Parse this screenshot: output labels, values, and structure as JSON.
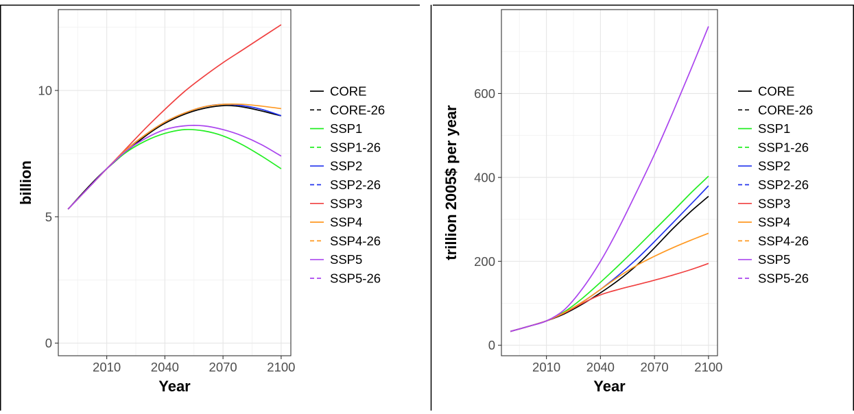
{
  "chart_data": [
    {
      "type": "line",
      "title": "",
      "xlabel": "Year",
      "ylabel": "billion",
      "xlim": [
        1985,
        2105
      ],
      "ylim": [
        -0.5,
        13.2
      ],
      "xticks": [
        2010,
        2040,
        2070,
        2100
      ],
      "yticks": [
        0,
        5,
        10
      ],
      "grid": true,
      "legend_position": "right",
      "series": [
        {
          "name": "CORE",
          "color": "#000000",
          "dash": false,
          "x": [
            1990,
            2010,
            2040,
            2070,
            2100
          ],
          "y": [
            5.3,
            6.9,
            8.7,
            9.4,
            9.0
          ]
        },
        {
          "name": "CORE-26",
          "color": "#000000",
          "dash": true,
          "x": [
            1990,
            2010,
            2040,
            2070,
            2100
          ],
          "y": [
            5.3,
            6.9,
            8.7,
            9.4,
            9.0
          ]
        },
        {
          "name": "SSP1",
          "color": "#22ee22",
          "dash": false,
          "x": [
            1990,
            2000,
            2010,
            2020,
            2030,
            2040,
            2050,
            2060,
            2070,
            2080,
            2090,
            2100
          ],
          "y": [
            5.3,
            6.1,
            6.9,
            7.55,
            8.0,
            8.3,
            8.45,
            8.4,
            8.2,
            7.85,
            7.4,
            6.9
          ]
        },
        {
          "name": "SSP1-26",
          "color": "#22ee22",
          "dash": true,
          "x": [
            1990,
            2000,
            2010,
            2020,
            2030,
            2040,
            2050,
            2060,
            2070,
            2080,
            2090,
            2100
          ],
          "y": [
            5.3,
            6.1,
            6.9,
            7.55,
            8.0,
            8.3,
            8.45,
            8.4,
            8.2,
            7.85,
            7.4,
            6.9
          ]
        },
        {
          "name": "SSP2",
          "color": "#2233ee",
          "dash": false,
          "x": [
            1990,
            2000,
            2010,
            2020,
            2030,
            2040,
            2050,
            2060,
            2070,
            2080,
            2090,
            2100
          ],
          "y": [
            5.3,
            6.1,
            6.9,
            7.65,
            8.25,
            8.75,
            9.1,
            9.35,
            9.45,
            9.4,
            9.25,
            9.0
          ]
        },
        {
          "name": "SSP2-26",
          "color": "#2233ee",
          "dash": true,
          "x": [
            1990,
            2000,
            2010,
            2020,
            2030,
            2040,
            2050,
            2060,
            2070,
            2080,
            2090,
            2100
          ],
          "y": [
            5.3,
            6.1,
            6.9,
            7.65,
            8.25,
            8.75,
            9.1,
            9.35,
            9.45,
            9.4,
            9.25,
            9.0
          ]
        },
        {
          "name": "SSP3",
          "color": "#f04040",
          "dash": false,
          "x": [
            1990,
            2000,
            2010,
            2020,
            2030,
            2040,
            2050,
            2060,
            2070,
            2080,
            2090,
            2100
          ],
          "y": [
            5.3,
            6.1,
            6.9,
            7.7,
            8.5,
            9.25,
            9.95,
            10.55,
            11.1,
            11.6,
            12.1,
            12.6
          ]
        },
        {
          "name": "SSP4",
          "color": "#ff9922",
          "dash": false,
          "x": [
            1990,
            2000,
            2010,
            2020,
            2030,
            2040,
            2050,
            2060,
            2070,
            2080,
            2090,
            2100
          ],
          "y": [
            5.3,
            6.1,
            6.9,
            7.65,
            8.25,
            8.75,
            9.1,
            9.35,
            9.45,
            9.45,
            9.38,
            9.28
          ]
        },
        {
          "name": "SSP4-26",
          "color": "#ff9922",
          "dash": true,
          "x": [
            1990,
            2000,
            2010,
            2020,
            2030,
            2040,
            2050,
            2060,
            2070,
            2080,
            2090,
            2100
          ],
          "y": [
            5.3,
            6.1,
            6.9,
            7.65,
            8.25,
            8.75,
            9.1,
            9.35,
            9.45,
            9.45,
            9.38,
            9.28
          ]
        },
        {
          "name": "SSP5",
          "color": "#aa44ee",
          "dash": false,
          "x": [
            1990,
            2000,
            2010,
            2020,
            2030,
            2040,
            2050,
            2060,
            2070,
            2080,
            2090,
            2100
          ],
          "y": [
            5.3,
            6.1,
            6.9,
            7.6,
            8.1,
            8.45,
            8.6,
            8.6,
            8.45,
            8.2,
            7.85,
            7.4
          ]
        },
        {
          "name": "SSP5-26",
          "color": "#aa44ee",
          "dash": true,
          "x": [
            1990,
            2000,
            2010,
            2020,
            2030,
            2040,
            2050,
            2060,
            2070,
            2080,
            2090,
            2100
          ],
          "y": [
            5.3,
            6.1,
            6.9,
            7.6,
            8.1,
            8.45,
            8.6,
            8.6,
            8.45,
            8.2,
            7.85,
            7.4
          ]
        }
      ]
    },
    {
      "type": "line",
      "title": "",
      "xlabel": "Year",
      "ylabel": "trillion 2005$ per year",
      "xlim": [
        1985,
        2105
      ],
      "ylim": [
        -25,
        800
      ],
      "xticks": [
        2010,
        2040,
        2070,
        2100
      ],
      "yticks": [
        0,
        200,
        400,
        600
      ],
      "grid": true,
      "legend_position": "right",
      "series": [
        {
          "name": "CORE",
          "color": "#000000",
          "dash": false,
          "x": [
            1990,
            2000,
            2010,
            2020,
            2030,
            2040,
            2050,
            2060,
            2070,
            2080,
            2090,
            2100
          ],
          "y": [
            33,
            45,
            58,
            75,
            98,
            125,
            155,
            190,
            232,
            277,
            318,
            355
          ]
        },
        {
          "name": "CORE-26",
          "color": "#000000",
          "dash": true,
          "x": [
            1990,
            2000,
            2010,
            2020,
            2030,
            2040,
            2050,
            2060,
            2070,
            2080,
            2090,
            2100
          ],
          "y": [
            33,
            45,
            58,
            75,
            98,
            125,
            155,
            190,
            232,
            277,
            318,
            355
          ]
        },
        {
          "name": "SSP1",
          "color": "#22ee22",
          "dash": false,
          "x": [
            1990,
            2000,
            2010,
            2020,
            2030,
            2040,
            2050,
            2060,
            2070,
            2080,
            2090,
            2100
          ],
          "y": [
            33,
            45,
            58,
            80,
            112,
            150,
            190,
            232,
            275,
            318,
            362,
            403
          ]
        },
        {
          "name": "SSP1-26",
          "color": "#22ee22",
          "dash": true,
          "x": [
            1990,
            2000,
            2010,
            2020,
            2030,
            2040,
            2050,
            2060,
            2070,
            2080,
            2090,
            2100
          ],
          "y": [
            33,
            45,
            58,
            80,
            112,
            150,
            190,
            232,
            275,
            318,
            362,
            403
          ]
        },
        {
          "name": "SSP2",
          "color": "#2233ee",
          "dash": false,
          "x": [
            1990,
            2000,
            2010,
            2020,
            2030,
            2040,
            2050,
            2060,
            2070,
            2080,
            2090,
            2100
          ],
          "y": [
            33,
            45,
            58,
            78,
            103,
            133,
            167,
            205,
            247,
            291,
            335,
            380
          ]
        },
        {
          "name": "SSP2-26",
          "color": "#2233ee",
          "dash": true,
          "x": [
            1990,
            2000,
            2010,
            2020,
            2030,
            2040,
            2050,
            2060,
            2070,
            2080,
            2090,
            2100
          ],
          "y": [
            33,
            45,
            58,
            78,
            103,
            133,
            167,
            205,
            247,
            291,
            335,
            380
          ]
        },
        {
          "name": "SSP3",
          "color": "#f04040",
          "dash": false,
          "x": [
            1990,
            2000,
            2010,
            2020,
            2030,
            2040,
            2050,
            2060,
            2070,
            2080,
            2090,
            2100
          ],
          "y": [
            33,
            45,
            58,
            77,
            100,
            120,
            133,
            144,
            155,
            167,
            180,
            195
          ]
        },
        {
          "name": "SSP4",
          "color": "#ff9922",
          "dash": false,
          "x": [
            1990,
            2000,
            2010,
            2020,
            2030,
            2040,
            2050,
            2060,
            2070,
            2080,
            2090,
            2100
          ],
          "y": [
            33,
            45,
            58,
            78,
            103,
            133,
            163,
            190,
            212,
            232,
            250,
            267
          ]
        },
        {
          "name": "SSP4-26",
          "color": "#ff9922",
          "dash": true,
          "x": [
            1990,
            2000,
            2010,
            2020,
            2030,
            2040,
            2050,
            2060,
            2070,
            2080,
            2090,
            2100
          ],
          "y": [
            33,
            45,
            58,
            78,
            103,
            133,
            163,
            190,
            212,
            232,
            250,
            267
          ]
        },
        {
          "name": "SSP5",
          "color": "#aa44ee",
          "dash": false,
          "x": [
            1990,
            2000,
            2010,
            2020,
            2030,
            2040,
            2050,
            2060,
            2070,
            2080,
            2090,
            2100
          ],
          "y": [
            33,
            45,
            58,
            85,
            135,
            200,
            278,
            365,
            455,
            553,
            655,
            760
          ]
        },
        {
          "name": "SSP5-26",
          "color": "#aa44ee",
          "dash": true,
          "x": [
            1990,
            2000,
            2010,
            2020,
            2030,
            2040,
            2050,
            2060,
            2070,
            2080,
            2090,
            2100
          ],
          "y": [
            33,
            45,
            58,
            85,
            135,
            200,
            278,
            365,
            455,
            553,
            655,
            760
          ]
        }
      ]
    }
  ]
}
